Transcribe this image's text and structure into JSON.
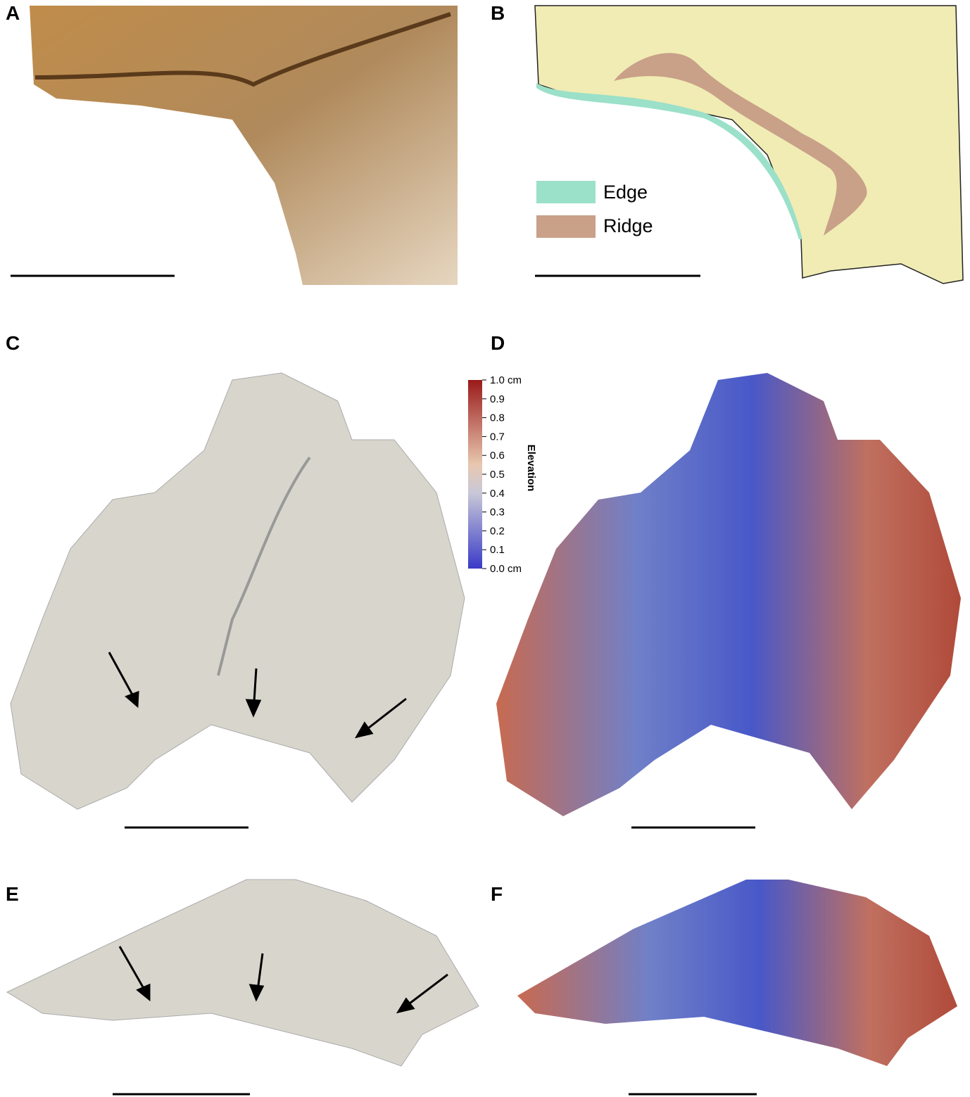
{
  "panels": [
    {
      "label": "A"
    },
    {
      "label": "B"
    },
    {
      "label": "C"
    },
    {
      "label": "D"
    },
    {
      "label": "E"
    },
    {
      "label": "F"
    }
  ],
  "legend": [
    {
      "label": "Edge",
      "color": "#9be0c8"
    },
    {
      "label": "Ridge",
      "color": "#c9a088"
    }
  ],
  "colorbar": {
    "title": "Elevation",
    "ticks": [
      "1.0 cm",
      "0.9",
      "0.8",
      "0.7",
      "0.6",
      "0.5",
      "0.4",
      "0.3",
      "0.2",
      "0.1",
      "0.0 cm"
    ]
  }
}
